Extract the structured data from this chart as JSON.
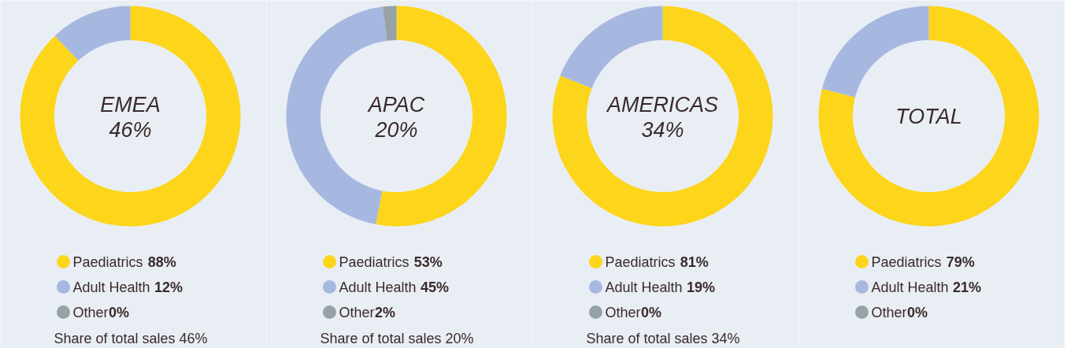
{
  "chart_data": [
    {
      "type": "donut",
      "title": "EMEA",
      "subtitle": "46%",
      "categories": [
        "Paediatrics",
        "Adult Health",
        "Other"
      ],
      "values": [
        88,
        12,
        0
      ],
      "value_labels": [
        "88%",
        "12%",
        "0%"
      ],
      "colors": [
        "#fdd51a",
        "#a6b8df",
        "#97a2a6"
      ],
      "legend": "bottom",
      "annotations": [
        "Share of total sales 46%"
      ]
    },
    {
      "type": "donut",
      "title": "APAC",
      "subtitle": "20%",
      "categories": [
        "Paediatrics",
        "Adult Health",
        "Other"
      ],
      "values": [
        53,
        45,
        2
      ],
      "value_labels": [
        "53%",
        "45%",
        "2%"
      ],
      "colors": [
        "#fdd51a",
        "#a6b8df",
        "#97a2a6"
      ],
      "legend": "bottom",
      "annotations": [
        "Share of total sales 20%"
      ]
    },
    {
      "type": "donut",
      "title": "AMERICAS",
      "subtitle": "34%",
      "categories": [
        "Paediatrics",
        "Adult Health",
        "Other"
      ],
      "values": [
        81,
        19,
        0
      ],
      "value_labels": [
        "81%",
        "19%",
        "0%"
      ],
      "colors": [
        "#fdd51a",
        "#a6b8df",
        "#97a2a6"
      ],
      "legend": "bottom",
      "annotations": [
        "Share of total sales 34%"
      ]
    },
    {
      "type": "donut",
      "title": "TOTAL",
      "categories": [
        "Paediatrics",
        "Adult Health",
        "Other"
      ],
      "values": [
        79,
        21,
        0
      ],
      "value_labels": [
        "79%",
        "21%",
        "0%"
      ],
      "colors": [
        "#fdd51a",
        "#a6b8df",
        "#97a2a6"
      ],
      "legend": "bottom"
    }
  ]
}
